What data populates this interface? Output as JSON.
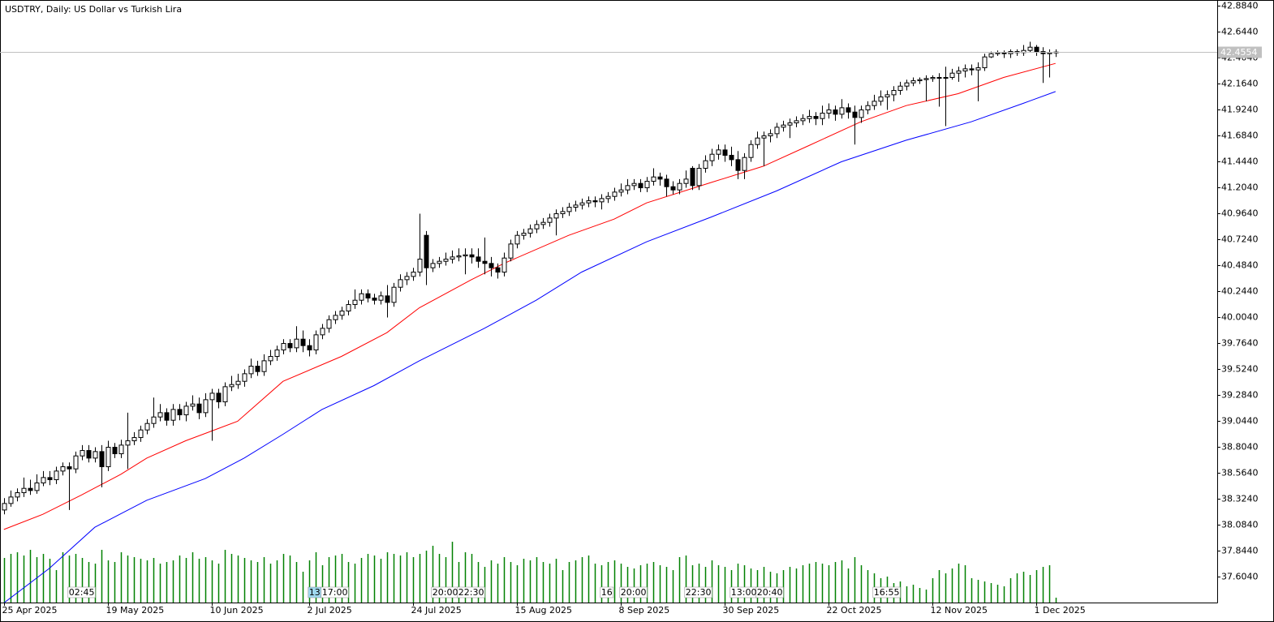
{
  "chart_data": {
    "type": "candlestick",
    "title": "USDTRY, Daily:  US Dollar vs Turkish Lira",
    "xlim": [
      -0.6,
      186.9
    ],
    "xticks": [
      {
        "value": 0,
        "label": "25 Apr 2025"
      },
      {
        "value": 16,
        "label": "19 May 2025"
      },
      {
        "value": 32,
        "label": "10 Jun 2025"
      },
      {
        "value": 47,
        "label": "2 Jul 2025"
      },
      {
        "value": 63,
        "label": "24 Jul 2025"
      },
      {
        "value": 79,
        "label": "15 Aug 2025"
      },
      {
        "value": 95,
        "label": "8 Sep 2025"
      },
      {
        "value": 111,
        "label": "30 Sep 2025"
      },
      {
        "value": 127,
        "label": "22 Oct 2025"
      },
      {
        "value": 143,
        "label": "12 Nov 2025"
      },
      {
        "value": 159,
        "label": "1 Dec 2025"
      }
    ],
    "ylim": [
      37.364,
      42.9365
    ],
    "yticks": [
      {
        "value": 42.884,
        "label": "42.8840"
      },
      {
        "value": 42.644,
        "label": "42.6440"
      },
      {
        "value": 42.404,
        "label": "42.4040"
      },
      {
        "value": 42.164,
        "label": "42.1640"
      },
      {
        "value": 41.924,
        "label": "41.9240"
      },
      {
        "value": 41.684,
        "label": "41.6840"
      },
      {
        "value": 41.444,
        "label": "41.4440"
      },
      {
        "value": 41.204,
        "label": "41.2040"
      },
      {
        "value": 40.964,
        "label": "40.9640"
      },
      {
        "value": 40.724,
        "label": "40.7240"
      },
      {
        "value": 40.484,
        "label": "40.4840"
      },
      {
        "value": 40.244,
        "label": "40.2440"
      },
      {
        "value": 40.004,
        "label": "40.0040"
      },
      {
        "value": 39.764,
        "label": "39.7640"
      },
      {
        "value": 39.524,
        "label": "39.5240"
      },
      {
        "value": 39.284,
        "label": "39.2840"
      },
      {
        "value": 39.044,
        "label": "39.0440"
      },
      {
        "value": 38.804,
        "label": "38.8040"
      },
      {
        "value": 38.564,
        "label": "38.5640"
      },
      {
        "value": 38.324,
        "label": "38.3240"
      },
      {
        "value": 38.084,
        "label": "38.0840"
      },
      {
        "value": 37.844,
        "label": "37.8440"
      },
      {
        "value": 37.604,
        "label": "37.6040"
      }
    ],
    "open": [
      38.22,
      38.28,
      38.34,
      38.38,
      38.42,
      38.4,
      38.47,
      38.52,
      38.5,
      38.58,
      38.62,
      38.6,
      38.72,
      38.77,
      38.7,
      38.76,
      38.62,
      38.8,
      38.74,
      38.82,
      38.86,
      38.89,
      38.96,
      39.02,
      39.08,
      39.12,
      39.05,
      39.15,
      39.1,
      39.18,
      39.2,
      39.12,
      39.24,
      39.3,
      39.22,
      39.36,
      39.38,
      39.41,
      39.48,
      39.55,
      39.5,
      39.6,
      39.64,
      39.7,
      39.76,
      39.72,
      39.8,
      39.74,
      39.7,
      39.84,
      39.9,
      39.98,
      40.02,
      40.06,
      40.12,
      40.16,
      40.22,
      40.18,
      40.16,
      40.2,
      40.14,
      40.28,
      40.35,
      40.38,
      40.42,
      40.76,
      40.46,
      40.5,
      40.52,
      40.54,
      40.56,
      40.57,
      40.58,
      40.56,
      40.52,
      40.5,
      40.46,
      40.42,
      40.55,
      40.68,
      40.76,
      40.78,
      40.82,
      40.86,
      40.88,
      40.92,
      40.96,
      40.98,
      41.02,
      41.04,
      41.06,
      41.08,
      41.07,
      41.1,
      41.12,
      41.16,
      41.18,
      41.22,
      41.24,
      41.2,
      41.26,
      41.3,
      41.28,
      41.21,
      41.18,
      41.24,
      41.38,
      41.22,
      41.38,
      41.45,
      41.51,
      41.55,
      41.5,
      41.46,
      41.36,
      41.48,
      41.6,
      41.66,
      41.68,
      41.7,
      41.76,
      41.78,
      41.8,
      41.82,
      41.84,
      41.86,
      41.84,
      41.89,
      41.92,
      41.88,
      41.94,
      41.9,
      41.85,
      41.92,
      41.96,
      42.0,
      42.04,
      42.06,
      42.1,
      42.14,
      42.17,
      42.19,
      42.2,
      42.21,
      42.22,
      42.22,
      42.22,
      42.26,
      42.28,
      42.3,
      42.29,
      42.31,
      42.41,
      42.44,
      42.45,
      42.44,
      42.46,
      42.45,
      42.47,
      42.5,
      42.46,
      42.44,
      42.45
    ],
    "high": [
      38.33,
      38.4,
      38.42,
      38.52,
      38.5,
      38.55,
      38.58,
      38.58,
      38.62,
      38.66,
      38.66,
      38.76,
      38.82,
      38.82,
      38.8,
      38.82,
      38.86,
      38.84,
      38.87,
      39.12,
      38.94,
      39.0,
      39.06,
      39.26,
      39.2,
      39.16,
      39.2,
      39.2,
      39.22,
      39.28,
      39.26,
      39.3,
      39.34,
      39.34,
      39.4,
      39.46,
      39.48,
      39.52,
      39.62,
      39.6,
      39.66,
      39.7,
      39.74,
      39.8,
      39.8,
      39.92,
      39.88,
      39.8,
      39.88,
      39.94,
      40.02,
      40.06,
      40.1,
      40.16,
      40.26,
      40.26,
      40.26,
      40.22,
      40.24,
      40.3,
      40.32,
      40.4,
      40.42,
      40.46,
      40.96,
      40.8,
      40.54,
      40.56,
      40.6,
      40.62,
      40.64,
      40.64,
      40.64,
      40.64,
      40.74,
      40.56,
      40.5,
      40.6,
      40.72,
      40.8,
      40.82,
      40.86,
      40.9,
      40.92,
      40.96,
      41.0,
      41.02,
      41.06,
      41.08,
      41.1,
      41.12,
      41.12,
      41.14,
      41.16,
      41.2,
      41.24,
      41.28,
      41.28,
      41.28,
      41.3,
      41.38,
      41.34,
      41.32,
      41.26,
      41.28,
      41.36,
      41.4,
      41.42,
      41.5,
      41.56,
      41.6,
      41.6,
      41.58,
      41.54,
      41.52,
      41.64,
      41.72,
      41.72,
      41.74,
      41.8,
      41.82,
      41.84,
      41.86,
      41.88,
      41.92,
      41.9,
      41.96,
      41.98,
      41.96,
      42.02,
      41.98,
      41.96,
      41.96,
      42.0,
      42.06,
      42.1,
      42.1,
      42.14,
      42.18,
      42.2,
      42.22,
      42.22,
      42.24,
      42.24,
      42.26,
      42.32,
      42.3,
      42.32,
      42.34,
      42.34,
      42.36,
      42.44,
      42.46,
      42.47,
      42.47,
      42.48,
      42.48,
      42.52,
      42.55,
      42.52,
      42.5,
      42.48,
      42.48
    ],
    "low": [
      38.18,
      38.25,
      38.3,
      38.34,
      38.36,
      38.37,
      38.44,
      38.45,
      38.46,
      38.54,
      38.22,
      38.56,
      38.68,
      38.66,
      38.66,
      38.43,
      38.58,
      38.7,
      38.7,
      38.6,
      38.82,
      38.85,
      38.92,
      38.98,
      39.04,
      39.0,
      39.0,
      39.05,
      39.04,
      39.14,
      39.06,
      39.08,
      38.86,
      39.16,
      39.18,
      39.32,
      39.34,
      39.36,
      39.44,
      39.46,
      39.46,
      39.56,
      39.6,
      39.66,
      39.68,
      39.68,
      39.68,
      39.64,
      39.66,
      39.8,
      39.86,
      39.94,
      39.98,
      40.02,
      40.08,
      40.12,
      40.14,
      40.12,
      40.12,
      40.0,
      40.1,
      40.24,
      40.3,
      40.34,
      40.38,
      40.3,
      40.42,
      40.46,
      40.48,
      40.5,
      40.52,
      40.4,
      40.5,
      40.46,
      40.4,
      40.38,
      40.36,
      40.38,
      40.52,
      40.64,
      40.72,
      40.74,
      40.78,
      40.82,
      40.84,
      40.76,
      40.92,
      40.94,
      40.98,
      41.0,
      41.02,
      41.02,
      41.0,
      41.06,
      41.08,
      41.12,
      41.14,
      41.18,
      41.16,
      41.16,
      41.22,
      41.22,
      41.12,
      41.14,
      41.14,
      41.2,
      41.18,
      41.18,
      41.34,
      41.4,
      41.46,
      41.44,
      41.4,
      41.28,
      41.28,
      41.44,
      41.56,
      41.4,
      41.62,
      41.66,
      41.72,
      41.66,
      41.76,
      41.78,
      41.8,
      41.78,
      41.78,
      41.84,
      41.82,
      41.84,
      41.84,
      41.6,
      41.8,
      41.88,
      41.92,
      41.96,
      41.92,
      42.0,
      42.06,
      42.1,
      42.14,
      42.16,
      42.0,
      42.18,
      41.95,
      41.77,
      42.2,
      42.18,
      42.22,
      42.24,
      42.0,
      42.28,
      42.4,
      42.42,
      42.4,
      42.4,
      42.42,
      42.42,
      42.45,
      42.42,
      42.17,
      42.22,
      42.41
    ],
    "close": [
      38.28,
      38.34,
      38.38,
      38.42,
      38.4,
      38.47,
      38.52,
      38.5,
      38.58,
      38.62,
      38.6,
      38.72,
      38.77,
      38.7,
      38.76,
      38.62,
      38.8,
      38.74,
      38.82,
      38.86,
      38.89,
      38.96,
      39.02,
      39.08,
      39.12,
      39.05,
      39.15,
      39.1,
      39.18,
      39.2,
      39.12,
      39.24,
      39.3,
      39.22,
      39.36,
      39.38,
      39.41,
      39.48,
      39.55,
      39.5,
      39.6,
      39.64,
      39.7,
      39.76,
      39.72,
      39.8,
      39.74,
      39.7,
      39.84,
      39.9,
      39.98,
      40.02,
      40.06,
      40.12,
      40.16,
      40.22,
      40.18,
      40.16,
      40.2,
      40.14,
      40.28,
      40.35,
      40.38,
      40.42,
      40.54,
      40.46,
      40.5,
      40.52,
      40.54,
      40.56,
      40.57,
      40.58,
      40.56,
      40.52,
      40.5,
      40.46,
      40.42,
      40.55,
      40.68,
      40.76,
      40.78,
      40.82,
      40.86,
      40.88,
      40.92,
      40.96,
      40.98,
      41.02,
      41.04,
      41.06,
      41.08,
      41.07,
      41.1,
      41.12,
      41.16,
      41.18,
      41.22,
      41.24,
      41.2,
      41.26,
      41.3,
      41.28,
      41.21,
      41.18,
      41.24,
      41.28,
      41.22,
      41.38,
      41.45,
      41.51,
      41.55,
      41.5,
      41.46,
      41.36,
      41.48,
      41.6,
      41.66,
      41.68,
      41.7,
      41.76,
      41.78,
      41.8,
      41.82,
      41.84,
      41.86,
      41.84,
      41.89,
      41.92,
      41.88,
      41.94,
      41.9,
      41.85,
      41.92,
      41.96,
      42.0,
      42.04,
      42.06,
      42.1,
      42.14,
      42.17,
      42.19,
      42.2,
      42.21,
      42.22,
      42.22,
      42.22,
      42.26,
      42.28,
      42.3,
      42.29,
      42.31,
      42.41,
      42.44,
      42.45,
      42.44,
      42.46,
      42.45,
      42.47,
      42.5,
      42.46,
      42.44,
      42.45,
      42.4554
    ],
    "up_color": "#ffffff",
    "down_color": "#000000",
    "moving_averages": [
      {
        "color": "#ff0000",
        "x": [
          0,
          6,
          12,
          18,
          22,
          28,
          32,
          36,
          43,
          52,
          59,
          64,
          72,
          77,
          87,
          94,
          99,
          109,
          117,
          124,
          132,
          139,
          147,
          154,
          162
        ],
        "values": [
          38.04,
          38.18,
          38.36,
          38.55,
          38.7,
          38.86,
          38.95,
          39.04,
          39.41,
          39.64,
          39.86,
          40.09,
          40.35,
          40.5,
          40.76,
          40.91,
          41.06,
          41.25,
          41.4,
          41.59,
          41.81,
          41.96,
          42.07,
          42.22,
          42.35
        ]
      },
      {
        "color": "#0000ff",
        "x": [
          0,
          7,
          14,
          22,
          31,
          37,
          43,
          49,
          57,
          64,
          74,
          82,
          89,
          99,
          109,
          119,
          129,
          139,
          149,
          157,
          162
        ],
        "values": [
          37.36,
          37.68,
          38.06,
          38.31,
          38.51,
          38.7,
          38.92,
          39.15,
          39.37,
          39.6,
          39.9,
          40.16,
          40.42,
          40.7,
          40.93,
          41.17,
          41.44,
          41.64,
          41.81,
          41.98,
          42.09
        ]
      }
    ],
    "volume": {
      "color": "#008000",
      "ylim": [
        0,
        100
      ],
      "values": [
        55,
        60,
        62,
        58,
        65,
        56,
        60,
        54,
        40,
        62,
        58,
        60,
        55,
        50,
        48,
        65,
        52,
        50,
        62,
        58,
        56,
        54,
        52,
        55,
        48,
        50,
        52,
        58,
        55,
        62,
        54,
        56,
        52,
        48,
        65,
        60,
        58,
        55,
        52,
        50,
        56,
        48,
        52,
        60,
        58,
        50,
        38,
        52,
        62,
        46,
        56,
        58,
        60,
        50,
        48,
        55,
        60,
        58,
        54,
        62,
        60,
        58,
        62,
        56,
        60,
        64,
        70,
        60,
        56,
        75,
        50,
        62,
        60,
        50,
        44,
        52,
        48,
        56,
        50,
        46,
        54,
        52,
        56,
        50,
        48,
        54,
        40,
        50,
        52,
        56,
        58,
        48,
        46,
        50,
        52,
        48,
        44,
        42,
        46,
        48,
        50,
        46,
        44,
        40,
        56,
        58,
        46,
        48,
        44,
        52,
        46,
        44,
        40,
        48,
        46,
        42,
        40,
        44,
        38,
        36,
        40,
        44,
        42,
        46,
        48,
        50,
        48,
        46,
        50,
        52,
        42,
        56,
        46,
        40,
        36,
        30,
        32,
        24,
        26,
        20,
        22,
        18,
        16,
        30,
        40,
        36,
        42,
        48,
        46,
        30,
        28,
        26,
        24,
        22,
        20,
        30,
        36,
        38,
        34,
        40,
        44,
        46,
        6
      ]
    },
    "last_price": 42.4554,
    "annotations": [
      {
        "x": 10,
        "text": "02:45"
      },
      {
        "x": 47,
        "text": "13"
      },
      {
        "x": 49,
        "text": "17:00"
      },
      {
        "x": 66,
        "text": "20:00"
      },
      {
        "x": 70,
        "text": "22:30"
      },
      {
        "x": 92,
        "text": "16"
      },
      {
        "x": 95,
        "text": "20:00"
      },
      {
        "x": 105,
        "text": "22:30"
      },
      {
        "x": 112,
        "text": "13:00"
      },
      {
        "x": 116,
        "text": "20:40"
      },
      {
        "x": 134,
        "text": "16:55"
      }
    ]
  }
}
